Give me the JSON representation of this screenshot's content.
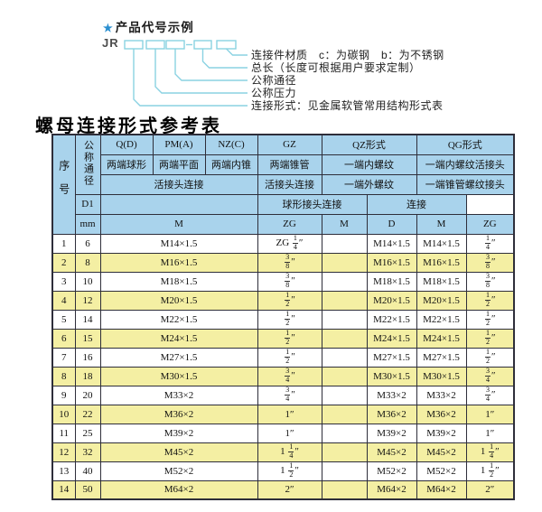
{
  "colors": {
    "header_bg": "#a9d3ec",
    "row_alt": "#f4efa3",
    "border": "#2e2e3a",
    "line": "#8ad2e2",
    "star": "#2a8fd0"
  },
  "diagram": {
    "star": "★",
    "heading": "产品代号示例",
    "code_prefix": "JR",
    "dash": "-",
    "labels": [
      "连接件材质　c：为碳钢　b：为不锈钢",
      "总长（长度可根据用户要求定制）",
      "公称通径",
      "公称压力",
      "连接形式：见金属软管常用结构形式表"
    ]
  },
  "table": {
    "title": "螺母连接形式参考表",
    "header": {
      "seq": "序号",
      "dn": "公称通径",
      "d1": "D1",
      "mm": "mm",
      "q": "Q(D)",
      "q_sub": "两端球形",
      "pm": "PM(A)",
      "pm_sub": "两端平面",
      "nz": "NZ(C)",
      "nz_sub": "两端内锥",
      "union_conn": "活接头连接",
      "m": "M",
      "gz": "GZ",
      "gz_sub": "两端锥管",
      "gz_conn": "活接头连接",
      "zg": "ZG",
      "qz": "QZ形式",
      "qz_sub1": "一端内螺纹",
      "qz_sub2": "一端外螺纹",
      "qz_conn": "球形接头连接",
      "qz_m": "M",
      "qz_d": "D",
      "qg": "QG形式",
      "qg_sub1": "一端内螺纹活接头",
      "qg_sub2": "一端锥管螺纹接头",
      "qg_conn": "连接",
      "qg_m": "M",
      "qg_zg": "ZG"
    },
    "rows": [
      [
        "1",
        "6",
        "M14×1.5",
        "ZG 1/4″",
        "",
        "M14×1.5",
        "M14×1.5",
        "1/4″"
      ],
      [
        "2",
        "8",
        "M16×1.5",
        "3/8″",
        "",
        "M16×1.5",
        "M16×1.5",
        "3/8″"
      ],
      [
        "3",
        "10",
        "M18×1.5",
        "3/8″",
        "",
        "M18×1.5",
        "M18×1.5",
        "3/8″"
      ],
      [
        "4",
        "12",
        "M20×1.5",
        "1/2″",
        "",
        "M20×1.5",
        "M20×1.5",
        "1/2″"
      ],
      [
        "5",
        "14",
        "M22×1.5",
        "1/2″",
        "",
        "M22×1.5",
        "M22×1.5",
        "1/2″"
      ],
      [
        "6",
        "15",
        "M24×1.5",
        "1/2″",
        "",
        "M24×1.5",
        "M24×1.5",
        "1/2″"
      ],
      [
        "7",
        "16",
        "M27×1.5",
        "1/2″",
        "",
        "M27×1.5",
        "M27×1.5",
        "1/2″"
      ],
      [
        "8",
        "18",
        "M30×1.5",
        "3/4″",
        "",
        "M30×1.5",
        "M30×1.5",
        "3/4″"
      ],
      [
        "9",
        "20",
        "M33×2",
        "3/4″",
        "",
        "M33×2",
        "M33×2",
        "3/4″"
      ],
      [
        "10",
        "22",
        "M36×2",
        "1″",
        "",
        "M36×2",
        "M36×2",
        "1″"
      ],
      [
        "11",
        "25",
        "M39×2",
        "1″",
        "",
        "M39×2",
        "M39×2",
        "1″"
      ],
      [
        "12",
        "32",
        "M45×2",
        "1 1/4″",
        "",
        "M45×2",
        "M45×2",
        "1 1/4″"
      ],
      [
        "13",
        "40",
        "M52×2",
        "1 1/2″",
        "",
        "M52×2",
        "M52×2",
        "1 1/2″"
      ],
      [
        "14",
        "50",
        "M64×2",
        "2″",
        "",
        "M64×2",
        "M64×2",
        "2″"
      ]
    ]
  }
}
